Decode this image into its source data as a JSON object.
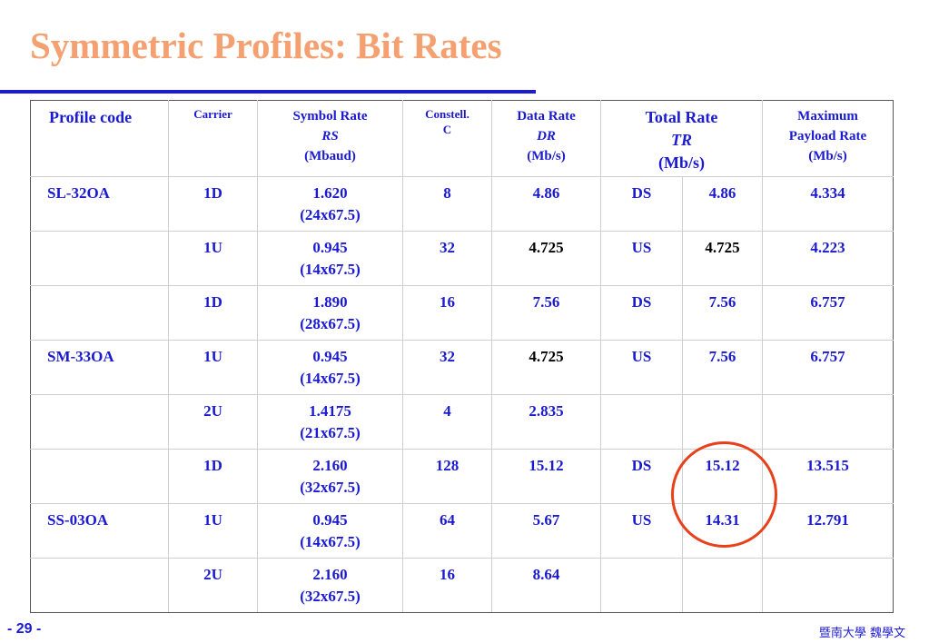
{
  "slide": {
    "title": "Symmetric Profiles: Bit Rates",
    "page_number": "- 29 -",
    "footer": "暨南大學 魏學文"
  },
  "table": {
    "headers": {
      "profile_code": "Profile code",
      "carrier": "Carrier",
      "symbol_rate": [
        "Symbol Rate",
        "RS",
        "(Mbaud)"
      ],
      "constell": [
        "Constell.",
        "C"
      ],
      "data_rate": [
        "Data Rate",
        "DR",
        "(Mb/s)"
      ],
      "total_rate": [
        "Total Rate",
        "TR",
        "(Mb/s)"
      ],
      "max_payload": [
        "Maximum",
        "Payload Rate",
        "(Mb/s)"
      ]
    },
    "rows": [
      {
        "code": "SL-32OA",
        "carrier": "1D",
        "sr": "1.620",
        "sr_detail": "(24x67.5)",
        "c": "8",
        "dr": "4.86",
        "dir": "DS",
        "tr": "4.86",
        "mpr": "4.334"
      },
      {
        "code": "",
        "carrier": "1U",
        "sr": "0.945",
        "sr_detail": "(14x67.5)",
        "c": "32",
        "dr": "4.725",
        "dir": "US",
        "tr": "4.725",
        "mpr": "4.223"
      },
      {
        "code": "",
        "carrier": "1D",
        "sr": "1.890",
        "sr_detail": "(28x67.5)",
        "c": "16",
        "dr": "7.56",
        "dir": "DS",
        "tr": "7.56",
        "mpr": "6.757"
      },
      {
        "code": "SM-33OA",
        "carrier": "1U",
        "sr": "0.945",
        "sr_detail": "(14x67.5)",
        "c": "32",
        "dr": "4.725",
        "dir": "US",
        "tr": "7.56",
        "mpr": "6.757"
      },
      {
        "code": "",
        "carrier": "2U",
        "sr": "1.4175",
        "sr_detail": "(21x67.5)",
        "c": "4",
        "dr": "2.835",
        "dir": "",
        "tr": "",
        "mpr": ""
      },
      {
        "code": "",
        "carrier": "1D",
        "sr": "2.160",
        "sr_detail": "(32x67.5)",
        "c": "128",
        "dr": "15.12",
        "dir": "DS",
        "tr": "15.12",
        "mpr": "13.515"
      },
      {
        "code": "SS-03OA",
        "carrier": "1U",
        "sr": "0.945",
        "sr_detail": "(14x67.5)",
        "c": "64",
        "dr": "5.67",
        "dir": "US",
        "tr": "14.31",
        "mpr": "12.791"
      },
      {
        "code": "",
        "carrier": "2U",
        "sr": "2.160",
        "sr_detail": "(32x67.5)",
        "c": "16",
        "dr": "8.64",
        "dir": "",
        "tr": "",
        "mpr": ""
      }
    ]
  },
  "colors": {
    "title": "#f4a070",
    "text": "#1a1ad0",
    "rule": "#1b1bd8",
    "highlight_circle": "#e8401a"
  }
}
